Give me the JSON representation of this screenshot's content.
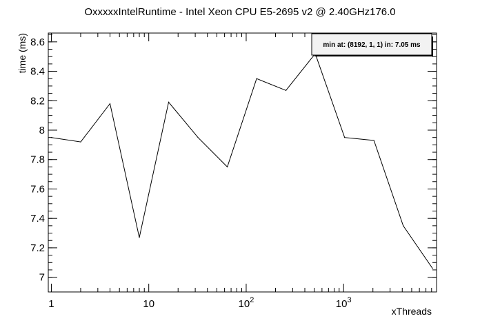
{
  "chart_data": {
    "type": "line",
    "title": "OxxxxxIntelRuntime - Intel Xeon CPU E5-2695 v2 @ 2.40GHz176.0",
    "xlabel": "xThreads",
    "ylabel": "time (ms)",
    "x_scale": "log",
    "xlim": [
      0.93,
      9000
    ],
    "ylim": [
      6.9,
      8.66
    ],
    "grid": false,
    "legend_text": "min at: (8192, 1, 1) in: 7.05 ms",
    "legend_position": "top-right",
    "line_color": "#000000",
    "x_ticks": [
      {
        "value": 1,
        "base": "1",
        "exp": ""
      },
      {
        "value": 10,
        "base": "10",
        "exp": ""
      },
      {
        "value": 100,
        "base": "10",
        "exp": "2"
      },
      {
        "value": 1000,
        "base": "10",
        "exp": "3"
      }
    ],
    "y_ticks": [
      {
        "value": 7,
        "label": "7"
      },
      {
        "value": 7.2,
        "label": "7.2"
      },
      {
        "value": 7.4,
        "label": "7.4"
      },
      {
        "value": 7.6,
        "label": "7.6"
      },
      {
        "value": 7.8,
        "label": "7.8"
      },
      {
        "value": 8,
        "label": "8"
      },
      {
        "value": 8.2,
        "label": "8.2"
      },
      {
        "value": 8.4,
        "label": "8.4"
      },
      {
        "value": 8.6,
        "label": "8.6"
      }
    ],
    "series": [
      {
        "x": [
          1,
          2,
          4,
          8,
          16,
          32,
          64,
          128,
          256,
          512,
          1024,
          2048,
          4096,
          8192
        ],
        "y": [
          7.95,
          7.92,
          8.18,
          7.27,
          8.19,
          7.95,
          7.75,
          8.35,
          8.27,
          8.52,
          7.95,
          7.93,
          7.35,
          7.06
        ]
      }
    ]
  }
}
